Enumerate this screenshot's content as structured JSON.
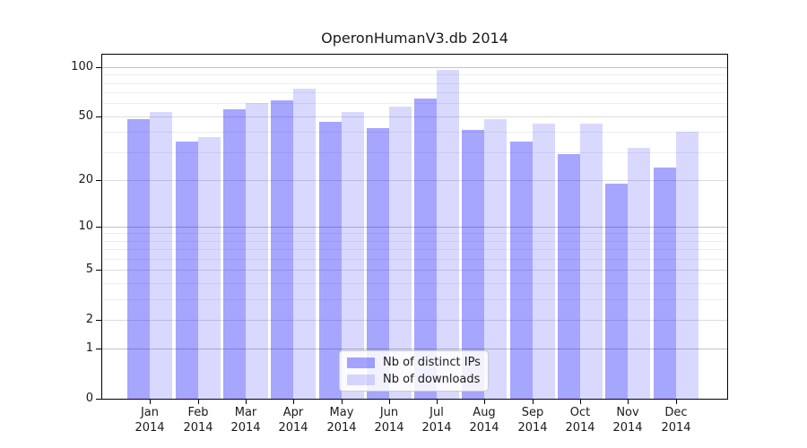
{
  "chart_data": {
    "type": "bar",
    "title": "OperonHumanV3.db 2014",
    "months": [
      "Jan",
      "Feb",
      "Mar",
      "Apr",
      "May",
      "Jun",
      "Jul",
      "Aug",
      "Sep",
      "Oct",
      "Nov",
      "Dec"
    ],
    "year": "2014",
    "series": [
      {
        "name": "Nb of distinct IPs",
        "color": "#a6a6ff",
        "values": [
          48,
          35,
          55,
          63,
          46,
          42,
          64,
          41,
          35,
          29,
          19,
          24
        ]
      },
      {
        "name": "Nb of downloads",
        "color": "#d9d9ff",
        "values": [
          53,
          37,
          60,
          74,
          53,
          57,
          96,
          48,
          45,
          45,
          32,
          40
        ]
      }
    ],
    "yticks": [
      0,
      1,
      2,
      5,
      10,
      20,
      50,
      100
    ],
    "yscale": "log10(value+1)",
    "ylim": [
      0,
      121
    ],
    "grid": true,
    "legend_position": "lower center"
  },
  "colors": {
    "bar_base": "#0000ff",
    "ips_alpha": "0.35",
    "downloads_alpha": "0.15",
    "ips_bar_hex": "#a6a6ff",
    "downloads_bar_hex": "#d9d9ff",
    "axis": "#000000",
    "grid_major": "#c3c3c3",
    "grid_mid": "#dcdcdc",
    "grid_minor": "#eeeeee",
    "text": "#1a1a1a",
    "legend_border": "#cccccc"
  }
}
